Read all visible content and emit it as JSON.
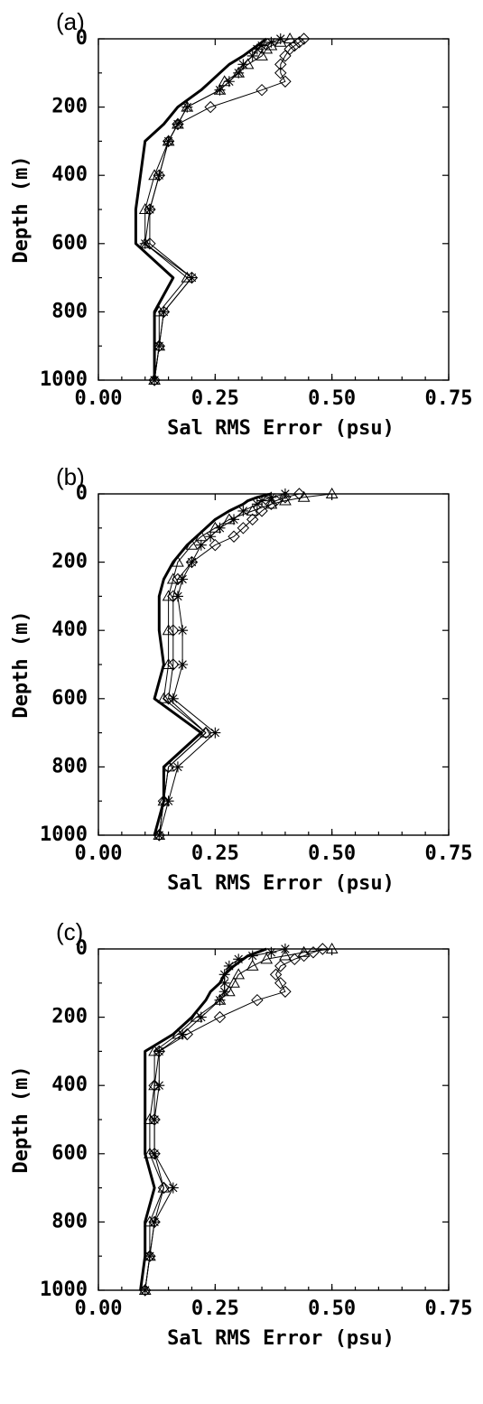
{
  "chart_data": [
    {
      "type": "line",
      "panel_label": "(a)",
      "xlabel": "Sal RMS Error (psu)",
      "ylabel": "Depth (m)",
      "xlim": [
        0.0,
        0.75
      ],
      "ylim": [
        1000,
        0
      ],
      "xticks": [
        "0.00",
        "0.25",
        "0.50",
        "0.75"
      ],
      "yticks": [
        "0",
        "200",
        "400",
        "600",
        "800",
        "1000"
      ],
      "y": [
        0,
        10,
        20,
        30,
        50,
        75,
        100,
        125,
        150,
        200,
        250,
        300,
        400,
        500,
        600,
        700,
        800,
        900,
        1000
      ],
      "series": [
        {
          "marker": "none",
          "linewidth": "thick",
          "values": [
            0.36,
            0.35,
            0.34,
            0.33,
            0.31,
            0.28,
            0.26,
            0.24,
            0.22,
            0.17,
            0.14,
            0.1,
            0.09,
            0.08,
            0.08,
            0.16,
            0.12,
            0.12,
            0.12
          ]
        },
        {
          "marker": "asterisk",
          "values": [
            0.39,
            0.37,
            0.35,
            0.34,
            0.33,
            0.31,
            0.3,
            0.28,
            0.26,
            0.19,
            0.17,
            0.15,
            0.13,
            0.11,
            0.1,
            0.2,
            0.14,
            0.13,
            0.12
          ]
        },
        {
          "marker": "triangle",
          "values": [
            0.41,
            0.39,
            0.37,
            0.36,
            0.35,
            0.32,
            0.3,
            0.27,
            0.26,
            0.19,
            0.17,
            0.15,
            0.12,
            0.1,
            0.1,
            0.19,
            0.13,
            0.13,
            0.12
          ]
        },
        {
          "marker": "diamond",
          "values": [
            0.44,
            0.43,
            0.42,
            0.41,
            0.4,
            0.39,
            0.39,
            0.4,
            0.35,
            0.24,
            0.17,
            0.15,
            0.13,
            0.11,
            0.11,
            0.2,
            0.14,
            0.13,
            0.12
          ]
        }
      ]
    },
    {
      "type": "line",
      "panel_label": "(b)",
      "xlabel": "Sal RMS Error (psu)",
      "ylabel": "Depth (m)",
      "xlim": [
        0.0,
        0.75
      ],
      "ylim": [
        1000,
        0
      ],
      "xticks": [
        "0.00",
        "0.25",
        "0.50",
        "0.75"
      ],
      "yticks": [
        "0",
        "200",
        "400",
        "600",
        "800",
        "1000"
      ],
      "y": [
        0,
        10,
        20,
        30,
        50,
        75,
        100,
        125,
        150,
        200,
        250,
        300,
        400,
        500,
        600,
        700,
        800,
        900,
        1000
      ],
      "series": [
        {
          "marker": "none",
          "linewidth": "thick",
          "values": [
            0.37,
            0.34,
            0.32,
            0.31,
            0.28,
            0.25,
            0.23,
            0.21,
            0.19,
            0.16,
            0.14,
            0.13,
            0.13,
            0.14,
            0.12,
            0.22,
            0.14,
            0.14,
            0.12
          ]
        },
        {
          "marker": "asterisk",
          "values": [
            0.4,
            0.37,
            0.35,
            0.34,
            0.31,
            0.29,
            0.26,
            0.24,
            0.22,
            0.2,
            0.18,
            0.17,
            0.18,
            0.18,
            0.16,
            0.25,
            0.17,
            0.15,
            0.13
          ]
        },
        {
          "marker": "triangle",
          "values": [
            0.5,
            0.44,
            0.4,
            0.37,
            0.33,
            0.28,
            0.25,
            0.22,
            0.2,
            0.17,
            0.16,
            0.15,
            0.15,
            0.15,
            0.14,
            0.23,
            0.15,
            0.14,
            0.13
          ]
        },
        {
          "marker": "diamond",
          "values": [
            0.43,
            0.4,
            0.38,
            0.37,
            0.35,
            0.33,
            0.31,
            0.29,
            0.25,
            0.2,
            0.17,
            0.16,
            0.16,
            0.16,
            0.15,
            0.23,
            0.15,
            0.14,
            0.13
          ]
        }
      ]
    },
    {
      "type": "line",
      "panel_label": "(c)",
      "xlabel": "Sal RMS Error (psu)",
      "ylabel": "Depth (m)",
      "xlim": [
        0.0,
        0.75
      ],
      "ylim": [
        1000,
        0
      ],
      "xticks": [
        "0.00",
        "0.25",
        "0.50",
        "0.75"
      ],
      "yticks": [
        "0",
        "200",
        "400",
        "600",
        "800",
        "1000"
      ],
      "y": [
        0,
        10,
        20,
        30,
        50,
        75,
        100,
        125,
        150,
        200,
        250,
        300,
        400,
        500,
        600,
        700,
        800,
        900,
        1000
      ],
      "series": [
        {
          "marker": "none",
          "linewidth": "thick",
          "values": [
            0.36,
            0.34,
            0.32,
            0.31,
            0.29,
            0.27,
            0.26,
            0.24,
            0.23,
            0.2,
            0.16,
            0.1,
            0.1,
            0.1,
            0.1,
            0.12,
            0.1,
            0.1,
            0.09
          ]
        },
        {
          "marker": "asterisk",
          "values": [
            0.4,
            0.37,
            0.33,
            0.3,
            0.28,
            0.27,
            0.27,
            0.27,
            0.26,
            0.22,
            0.18,
            0.13,
            0.13,
            0.12,
            0.12,
            0.16,
            0.12,
            0.11,
            0.1
          ]
        },
        {
          "marker": "triangle",
          "values": [
            0.5,
            0.44,
            0.4,
            0.36,
            0.33,
            0.3,
            0.29,
            0.28,
            0.26,
            0.21,
            0.17,
            0.12,
            0.12,
            0.11,
            0.11,
            0.14,
            0.11,
            0.11,
            0.1
          ]
        },
        {
          "marker": "diamond",
          "values": [
            0.48,
            0.46,
            0.44,
            0.42,
            0.39,
            0.38,
            0.39,
            0.4,
            0.34,
            0.26,
            0.19,
            0.13,
            0.12,
            0.12,
            0.12,
            0.14,
            0.12,
            0.11,
            0.1
          ]
        }
      ]
    }
  ]
}
